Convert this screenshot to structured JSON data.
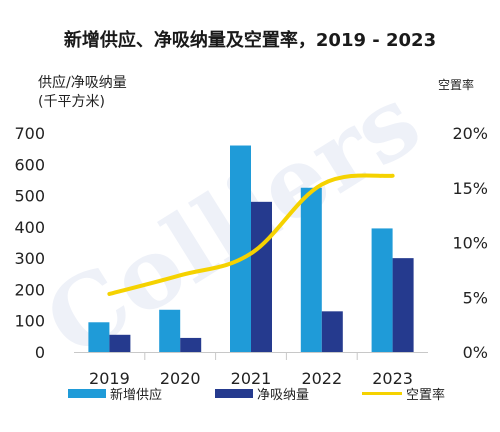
{
  "chart_data": {
    "type": "bar",
    "title": "新增供应、净吸纳量及空置率，2019 - 2023",
    "ylabel_left": [
      "供应/净吸纳量",
      "(千平方米)"
    ],
    "ylabel_right": "空置率",
    "categories": [
      "2019",
      "2020",
      "2021",
      "2022",
      "2023"
    ],
    "series": [
      {
        "name": "新增供应",
        "type": "bar",
        "axis": "left",
        "values": [
          95,
          135,
          660,
          525,
          395
        ]
      },
      {
        "name": "净吸纳量",
        "type": "bar",
        "axis": "left",
        "values": [
          55,
          45,
          480,
          130,
          300
        ]
      },
      {
        "name": "空置率",
        "type": "line",
        "axis": "right",
        "values": [
          5.3,
          7.0,
          9.0,
          15.3,
          16.1
        ]
      }
    ],
    "ylim_left": [
      0,
      700
    ],
    "yticks_left": [
      "0",
      "100",
      "200",
      "300",
      "400",
      "500",
      "600",
      "700"
    ],
    "ylim_right": [
      0,
      20
    ],
    "yticks_right": [
      "0%",
      "5%",
      "10%",
      "15%",
      "20%"
    ],
    "colors": {
      "supply": "#1f9bd8",
      "absorption": "#253a8e",
      "vacancy": "#f5d200"
    },
    "watermark": "Colliers",
    "legend_position": "bottom"
  }
}
